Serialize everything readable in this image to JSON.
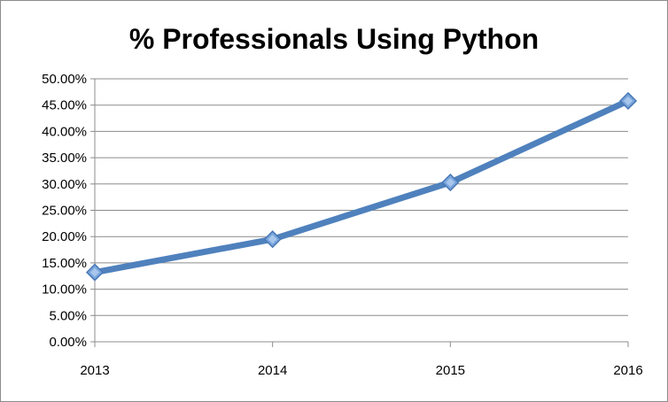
{
  "chart_data": {
    "type": "line",
    "title": "% Professionals Using Python",
    "xlabel": "",
    "ylabel": "",
    "categories": [
      "2013",
      "2014",
      "2015",
      "2016"
    ],
    "series": [
      {
        "values": [
          13.2,
          19.5,
          30.3,
          45.8
        ],
        "color": "#4f81bd",
        "marker": "diamond"
      }
    ],
    "ylim": [
      0,
      50
    ],
    "yticks": [
      0,
      5,
      10,
      15,
      20,
      25,
      30,
      35,
      40,
      45,
      50
    ],
    "ytick_labels": [
      "0.00%",
      "5.00%",
      "10.00%",
      "15.00%",
      "20.00%",
      "25.00%",
      "30.00%",
      "35.00%",
      "40.00%",
      "45.00%",
      "50.00%"
    ],
    "grid": true,
    "legend": "none"
  }
}
